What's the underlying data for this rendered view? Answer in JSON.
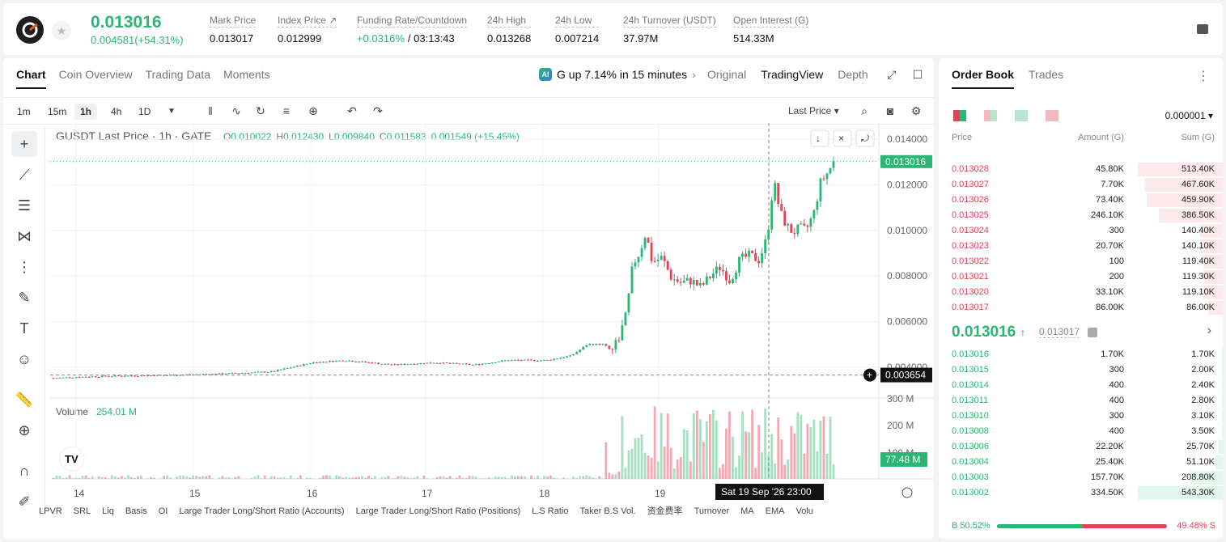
{
  "header": {
    "price": "0.013016",
    "change": "0.004581(+54.31%)",
    "stats": [
      {
        "label": "Mark Price",
        "value": "0.013017"
      },
      {
        "label": "Index Price ↗",
        "value": "0.012999"
      },
      {
        "label": "Funding Rate/Countdown",
        "value": "+0.0316%",
        "value2": "/ 03:13:43"
      },
      {
        "label": "24h High",
        "value": "0.013268"
      },
      {
        "label": "24h Low",
        "value": "0.007214"
      },
      {
        "label": "24h Turnover (USDT)",
        "value": "37.97M"
      },
      {
        "label": "Open Interest (G)",
        "value": "514.33M"
      }
    ]
  },
  "tabs": [
    "Chart",
    "Coin Overview",
    "Trading Data",
    "Moments"
  ],
  "ai_banner": "G up 7.14% in 15 minutes",
  "views": [
    "Original",
    "TradingView",
    "Depth"
  ],
  "timeframes": [
    "1m",
    "15m",
    "1h",
    "4h",
    "1D"
  ],
  "last_price_label": "Last Price",
  "chart_info": {
    "symbol": "GUSDT Last Price · 1h · GATE",
    "o": "0.010022",
    "h": "0.012430",
    "l": "0.009840",
    "c": "0.011583",
    "chg": "0.001549 (+15.45%)"
  },
  "volume": {
    "label": "Volume",
    "value": "254.01 M"
  },
  "price_axis": [
    "0.014000",
    "0.012000",
    "0.010000",
    "0.008000",
    "0.006000",
    "0.004000"
  ],
  "current_price_tag": "0.013016",
  "crosshair_tag": "0.003654",
  "vol_axis": [
    "300 M",
    "200 M",
    "100 M"
  ],
  "vol_tag": "77.48 M",
  "x_axis": [
    "14",
    "15",
    "16",
    "17",
    "18",
    "19"
  ],
  "crosshair_time": "Sat 19 Sep '26   23:00",
  "indicators": [
    "LPVR",
    "SRL",
    "Liq",
    "Basis",
    "OI",
    "Large Trader Long/Short Ratio (Accounts)",
    "Large Trader Long/Short Ratio (Positions)",
    "L.S Ratio",
    "Taker B.S Vol.",
    "资金费率",
    "Turnover",
    "MA",
    "EMA",
    "Volu"
  ],
  "chart_data": {
    "type": "candlestick",
    "symbol": "GUSDT",
    "interval": "1h",
    "ylim": [
      0.003,
      0.0145
    ],
    "ohlc": []
  },
  "orderbook": {
    "tabs": [
      "Order Book",
      "Trades"
    ],
    "precision": "0.000001",
    "headers": [
      "Price",
      "Amount (G)",
      "Sum (G)"
    ],
    "asks": [
      [
        "0.013028",
        "45.80K",
        "513.40K",
        1.0
      ],
      [
        "0.013027",
        "7.70K",
        "467.60K",
        0.91
      ],
      [
        "0.013026",
        "73.40K",
        "459.90K",
        0.9
      ],
      [
        "0.013025",
        "246.10K",
        "386.50K",
        0.75
      ],
      [
        "0.013024",
        "300",
        "140.40K",
        0.27
      ],
      [
        "0.013023",
        "20.70K",
        "140.10K",
        0.27
      ],
      [
        "0.013022",
        "100",
        "119.40K",
        0.23
      ],
      [
        "0.013021",
        "200",
        "119.30K",
        0.23
      ],
      [
        "0.013020",
        "33.10K",
        "119.10K",
        0.23
      ],
      [
        "0.013017",
        "86.00K",
        "86.00K",
        0.17
      ]
    ],
    "mid": "0.013016",
    "mid_sub": "0.013017",
    "bids": [
      [
        "0.013016",
        "1.70K",
        "1.70K",
        0.01
      ],
      [
        "0.013015",
        "300",
        "2.00K",
        0.01
      ],
      [
        "0.013014",
        "400",
        "2.40K",
        0.01
      ],
      [
        "0.013011",
        "400",
        "2.80K",
        0.01
      ],
      [
        "0.013010",
        "300",
        "3.10K",
        0.01
      ],
      [
        "0.013008",
        "400",
        "3.50K",
        0.01
      ],
      [
        "0.013006",
        "22.20K",
        "25.70K",
        0.05
      ],
      [
        "0.013004",
        "25.40K",
        "51.10K",
        0.09
      ],
      [
        "0.013003",
        "157.70K",
        "208.80K",
        0.38
      ],
      [
        "0.013002",
        "334.50K",
        "543.30K",
        1.0
      ]
    ],
    "buy": "B 50.52%",
    "sell": "49.48% S",
    "buy_frac": 0.5052
  }
}
